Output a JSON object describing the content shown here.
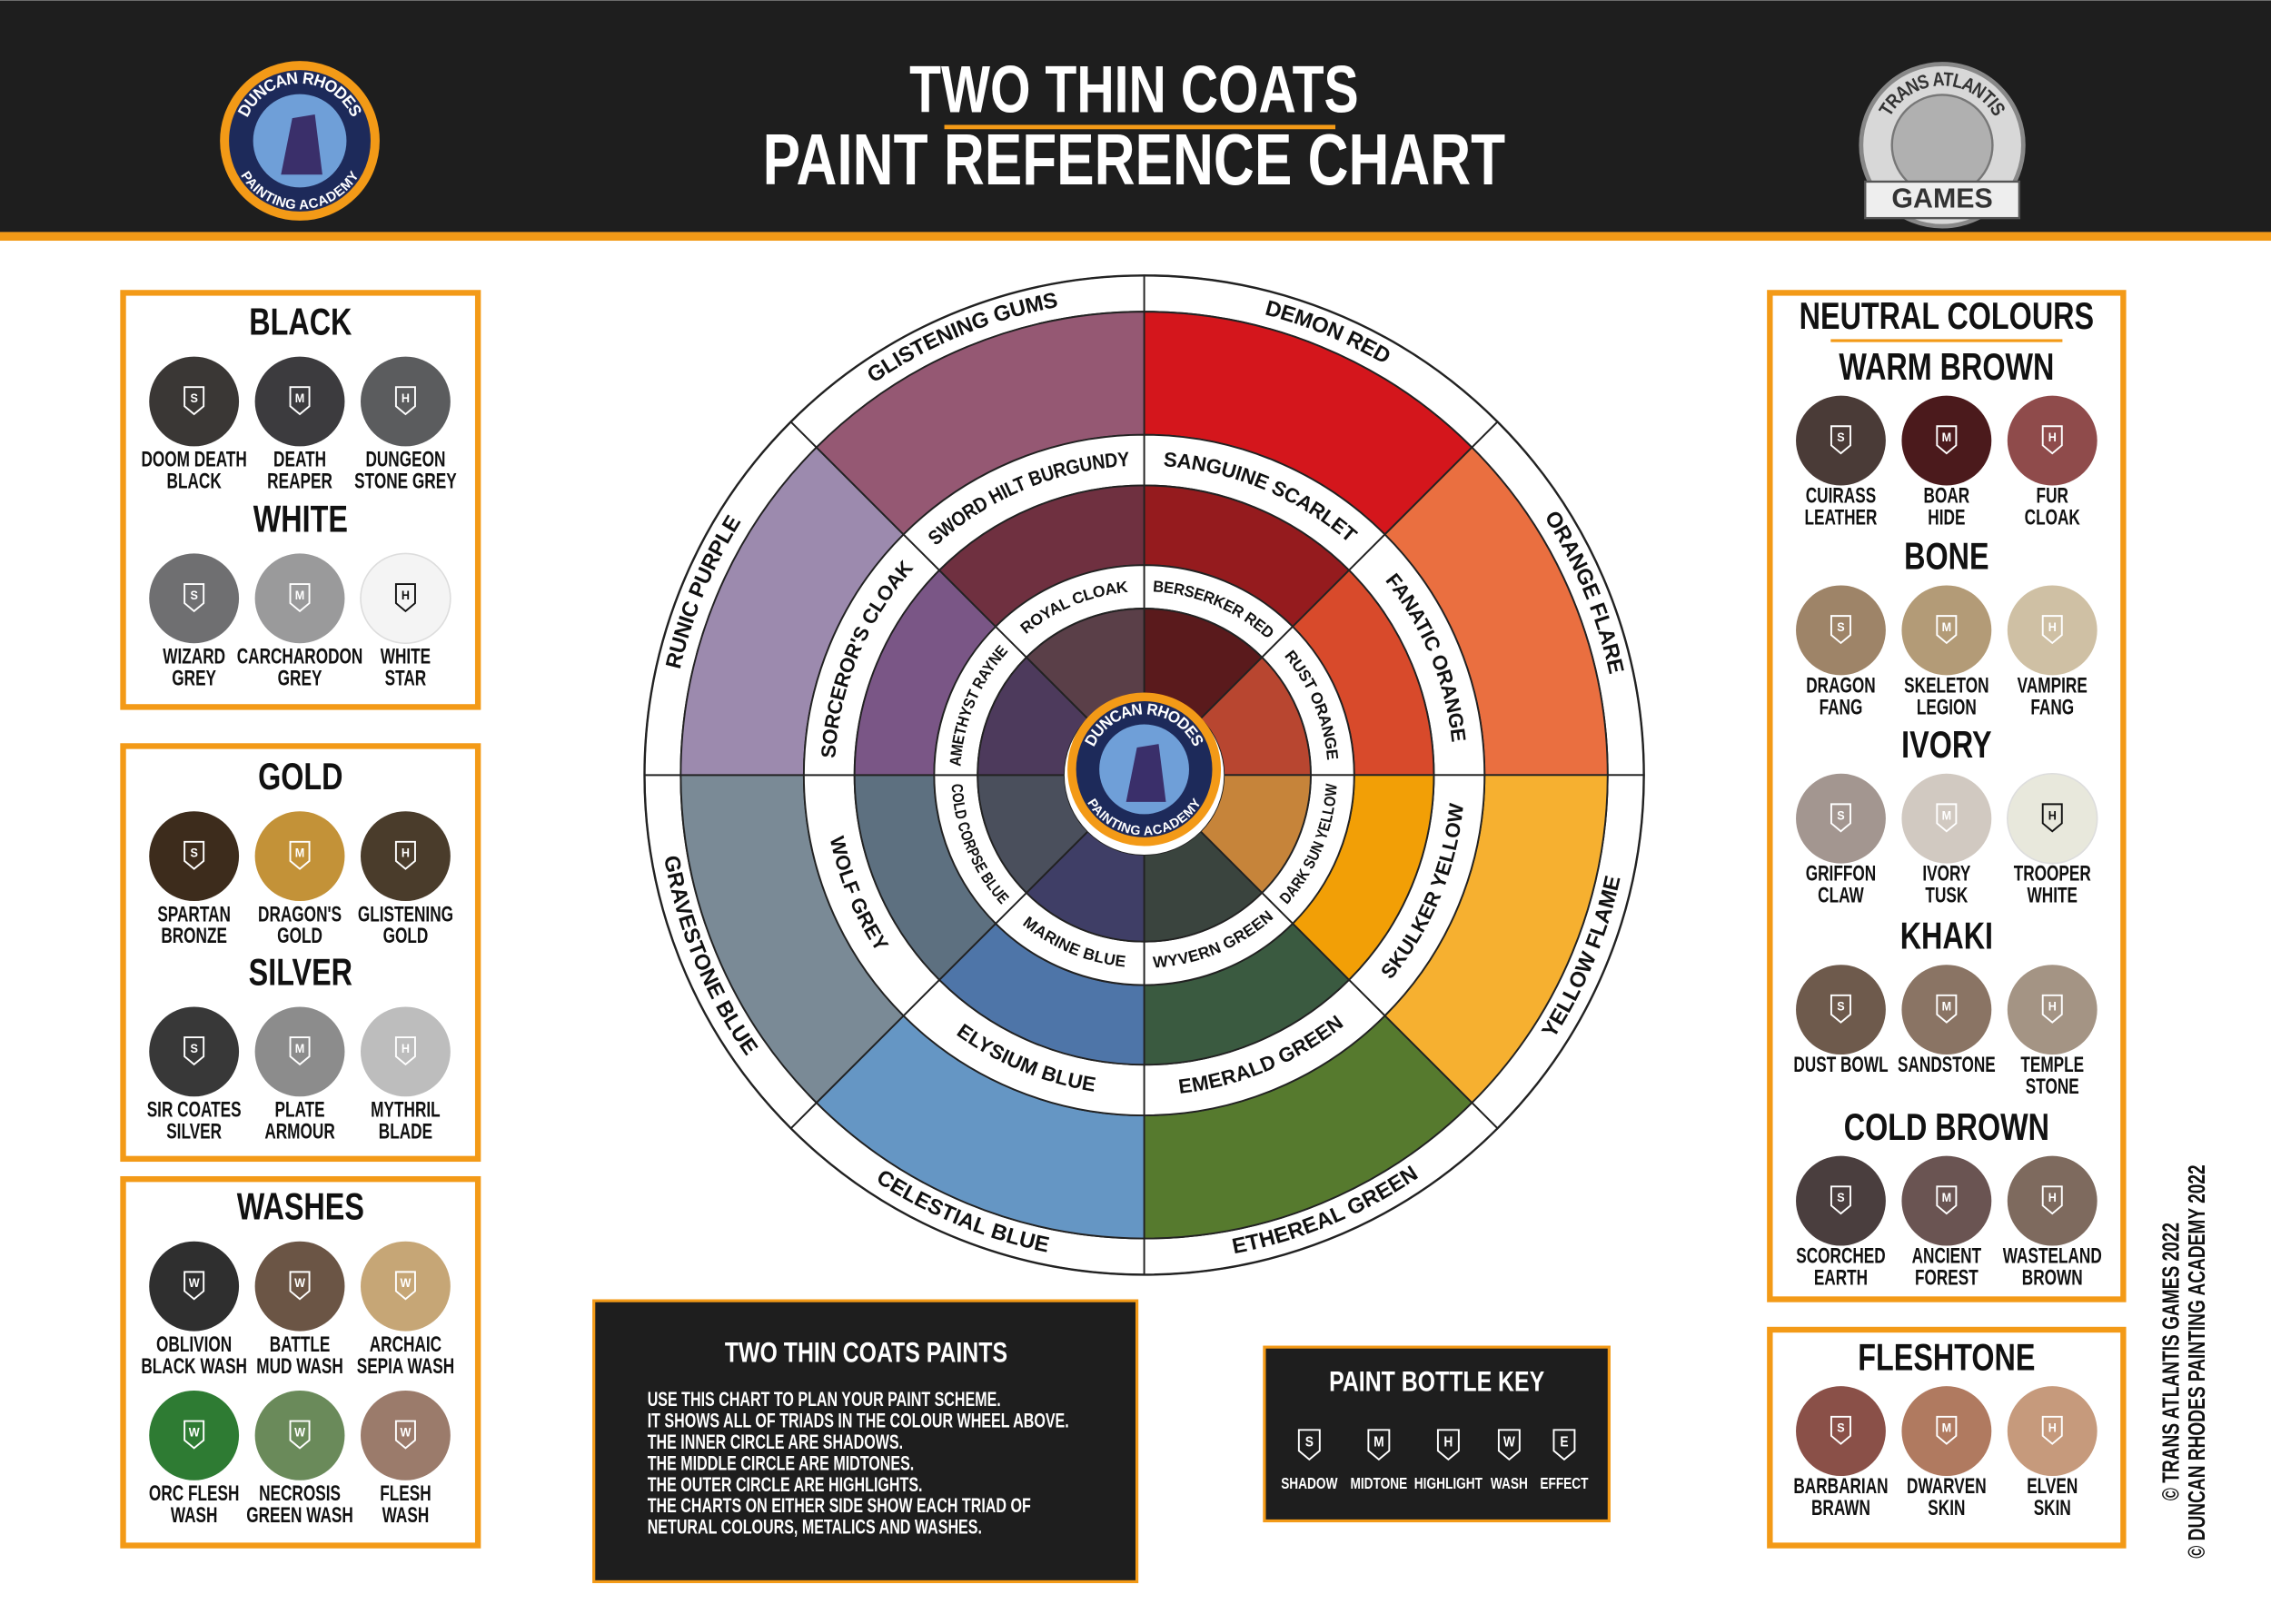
{
  "header": {
    "title": "TWO THIN COATS",
    "subtitle": "PAINT REFERENCE CHART",
    "left_logo": {
      "top": "DUNCAN RHODES",
      "bottom": "PAINTING ACADEMY"
    },
    "right_logo": {
      "top": "TRANS ATLANTIS",
      "bottom": "GAMES"
    }
  },
  "left_panels": [
    {
      "groups": [
        {
          "title": "BLACK",
          "swatches": [
            {
              "name": [
                "DOOM DEATH",
                "BLACK"
              ],
              "bottle": "S",
              "color": "#3a3735"
            },
            {
              "name": [
                "DEATH",
                "REAPER"
              ],
              "bottle": "M",
              "color": "#3c3b3e"
            },
            {
              "name": [
                "DUNGEON",
                "STONE GREY"
              ],
              "bottle": "H",
              "color": "#5b5c5e"
            }
          ]
        },
        {
          "title": "WHITE",
          "swatches": [
            {
              "name": [
                "WIZARD",
                "GREY"
              ],
              "bottle": "S",
              "color": "#6f6f71"
            },
            {
              "name": [
                "CARCHARODON",
                "GREY"
              ],
              "bottle": "M",
              "color": "#9a9a9b"
            },
            {
              "name": [
                "WHITE",
                "STAR"
              ],
              "bottle": "H",
              "color": "#f4f4f4"
            }
          ]
        }
      ]
    },
    {
      "groups": [
        {
          "title": "GOLD",
          "swatches": [
            {
              "name": [
                "SPARTAN",
                "BRONZE"
              ],
              "bottle": "S",
              "color": "#3d2c1c"
            },
            {
              "name": [
                "DRAGON'S",
                "GOLD"
              ],
              "bottle": "M",
              "color": "#c39238"
            },
            {
              "name": [
                "GLISTENING",
                "GOLD"
              ],
              "bottle": "H",
              "color": "#4a3c2b"
            }
          ]
        },
        {
          "title": "SILVER",
          "swatches": [
            {
              "name": [
                "SIR COATES",
                "SILVER"
              ],
              "bottle": "S",
              "color": "#383838"
            },
            {
              "name": [
                "PLATE",
                "ARMOUR"
              ],
              "bottle": "M",
              "color": "#8c8c8c"
            },
            {
              "name": [
                "MYTHRIL",
                "BLADE"
              ],
              "bottle": "H",
              "color": "#bdbdbd"
            }
          ]
        }
      ]
    },
    {
      "groups": [
        {
          "title": "WASHES",
          "swatches": [
            {
              "name": [
                "OBLIVION",
                "BLACK WASH"
              ],
              "bottle": "W",
              "color": "#2f2f2f"
            },
            {
              "name": [
                "BATTLE",
                "MUD WASH"
              ],
              "bottle": "W",
              "color": "#6b5545"
            },
            {
              "name": [
                "ARCHAIC",
                "SEPIA WASH"
              ],
              "bottle": "W",
              "color": "#c6a676"
            },
            {
              "name": [
                "ORC FLESH",
                "WASH"
              ],
              "bottle": "W",
              "color": "#2e7b33"
            },
            {
              "name": [
                "NECROSIS",
                "GREEN WASH"
              ],
              "bottle": "W",
              "color": "#6a8a5a"
            },
            {
              "name": [
                "FLESH",
                "WASH"
              ],
              "bottle": "W",
              "color": "#9b7b6b"
            }
          ]
        }
      ]
    }
  ],
  "right_panels": [
    {
      "heading": "NEUTRAL COLOURS",
      "groups": [
        {
          "title": "WARM BROWN",
          "swatches": [
            {
              "name": [
                "CUIRASS",
                "LEATHER"
              ],
              "bottle": "S",
              "color": "#4a3b37"
            },
            {
              "name": [
                "BOAR",
                "HIDE"
              ],
              "bottle": "M",
              "color": "#4b1a1c"
            },
            {
              "name": [
                "FUR",
                "CLOAK"
              ],
              "bottle": "H",
              "color": "#8f4b4b"
            }
          ]
        },
        {
          "title": "BONE",
          "swatches": [
            {
              "name": [
                "DRAGON",
                "FANG"
              ],
              "bottle": "S",
              "color": "#9e8468"
            },
            {
              "name": [
                "SKELETON",
                "LEGION"
              ],
              "bottle": "M",
              "color": "#b39b77"
            },
            {
              "name": [
                "VAMPIRE",
                "FANG"
              ],
              "bottle": "H",
              "color": "#cfc0a4"
            }
          ]
        },
        {
          "title": "IVORY",
          "swatches": [
            {
              "name": [
                "GRIFFON",
                "CLAW"
              ],
              "bottle": "S",
              "color": "#a39690"
            },
            {
              "name": [
                "IVORY",
                "TUSK"
              ],
              "bottle": "M",
              "color": "#d1c9c1"
            },
            {
              "name": [
                "TROOPER",
                "WHITE"
              ],
              "bottle": "H",
              "color": "#e8e8dc"
            }
          ]
        },
        {
          "title": "KHAKI",
          "swatches": [
            {
              "name": [
                "DUST BOWL"
              ],
              "bottle": "S",
              "color": "#6e5a4c"
            },
            {
              "name": [
                "SANDSTONE"
              ],
              "bottle": "M",
              "color": "#8a7464"
            },
            {
              "name": [
                "TEMPLE",
                "STONE"
              ],
              "bottle": "H",
              "color": "#a49484"
            }
          ]
        },
        {
          "title": "COLD BROWN",
          "swatches": [
            {
              "name": [
                "SCORCHED",
                "EARTH"
              ],
              "bottle": "S",
              "color": "#4a3e3e"
            },
            {
              "name": [
                "ANCIENT",
                "FOREST"
              ],
              "bottle": "M",
              "color": "#6a5452"
            },
            {
              "name": [
                "WASTELAND",
                "BROWN"
              ],
              "bottle": "H",
              "color": "#7e6a5e"
            }
          ]
        }
      ]
    },
    {
      "groups": [
        {
          "title": "FLESHTONE",
          "swatches": [
            {
              "name": [
                "BARBARIAN",
                "BRAWN"
              ],
              "bottle": "S",
              "color": "#8a5048"
            },
            {
              "name": [
                "DWARVEN",
                "SKIN"
              ],
              "bottle": "M",
              "color": "#b07a60"
            },
            {
              "name": [
                "ELVEN",
                "SKIN"
              ],
              "bottle": "H",
              "color": "#c69a7c"
            }
          ]
        }
      ]
    }
  ],
  "wheel": {
    "logo": {
      "top": "DUNCAN RHODES",
      "bottom": "PAINTING ACADEMY"
    },
    "rings": [
      {
        "segments": [
          {
            "label": "DEMON RED",
            "color": "#d4161c"
          },
          {
            "label": "ORANGE FLARE",
            "color": "#ea6f40"
          },
          {
            "label": "YELLOW FLAME",
            "color": "#f6b030"
          },
          {
            "label": "ETHEREAL GREEN",
            "color": "#567a2e"
          },
          {
            "label": "CELESTIAL BLUE",
            "color": "#6596c4"
          },
          {
            "label": "GRAVESTONE BLUE",
            "color": "#7a8a96"
          },
          {
            "label": "RUNIC PURPLE",
            "color": "#9c8aae"
          },
          {
            "label": "GLISTENING GUMS",
            "color": "#955873"
          }
        ]
      },
      {
        "segments": [
          {
            "label": "SANGUINE SCARLET",
            "color": "#951b1e"
          },
          {
            "label": "FANATIC ORANGE",
            "color": "#d84a2b"
          },
          {
            "label": "SKULKER YELLOW",
            "color": "#f29f06"
          },
          {
            "label": "EMERALD GREEN",
            "color": "#3a5a40"
          },
          {
            "label": "ELYSIUM BLUE",
            "color": "#4e75a8"
          },
          {
            "label": "WOLF GREY",
            "color": "#5d7080"
          },
          {
            "label": "SORCEROR'S CLOAK",
            "color": "#7a5686"
          },
          {
            "label": "SWORD HILT BURGUNDY",
            "color": "#6f3040"
          }
        ]
      },
      {
        "segments": [
          {
            "label": "BERSERKER RED",
            "color": "#5a1a1c"
          },
          {
            "label": "RUST ORANGE",
            "color": "#b84630"
          },
          {
            "label": "DARK SUN YELLOW",
            "color": "#c6843a"
          },
          {
            "label": "WYVERN GREEN",
            "color": "#3a443e"
          },
          {
            "label": "MARINE BLUE",
            "color": "#3f3e66"
          },
          {
            "label": "COLD CORPSE BLUE",
            "color": "#4a4f5c"
          },
          {
            "label": "AMETHYST RAYNE",
            "color": "#4d3a5c"
          },
          {
            "label": "ROYAL CLOAK",
            "color": "#5a3f48"
          }
        ]
      }
    ]
  },
  "info": {
    "title": "TWO THIN COATS PAINTS",
    "lines": [
      "USE THIS CHART TO PLAN YOUR PAINT SCHEME.",
      "IT SHOWS ALL OF TRIADS IN THE COLOUR WHEEL ABOVE.",
      "THE INNER CIRCLE ARE SHADOWS.",
      "THE MIDDLE CIRCLE ARE MIDTONES.",
      "THE OUTER CIRCLE ARE HIGHLIGHTS.",
      "THE CHARTS ON EITHER SIDE SHOW EACH TRIAD OF",
      "NETURAL COLOURS, METALICS AND WASHES."
    ]
  },
  "key": {
    "title": "PAINT BOTTLE KEY",
    "items": [
      {
        "letter": "S",
        "label": "SHADOW"
      },
      {
        "letter": "M",
        "label": "MIDTONE"
      },
      {
        "letter": "H",
        "label": "HIGHLIGHT"
      },
      {
        "letter": "W",
        "label": "WASH"
      },
      {
        "letter": "E",
        "label": "EFFECT"
      }
    ]
  },
  "copyright": [
    "© TRANS ATLANTIS GAMES 2022",
    "© DUNCAN RHODES PAINTING ACADEMY 2022"
  ]
}
